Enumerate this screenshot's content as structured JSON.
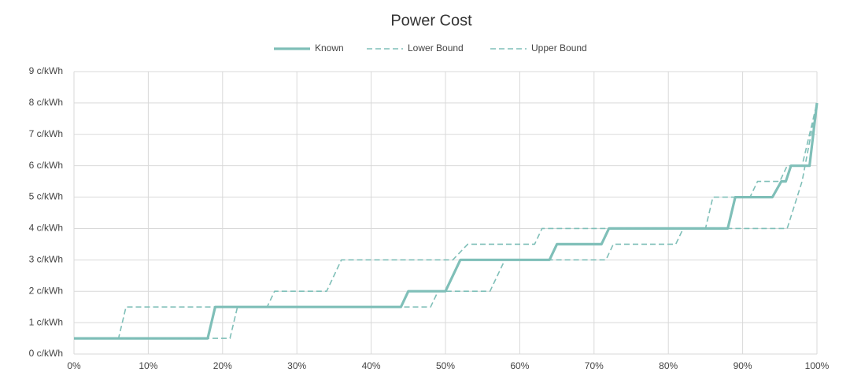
{
  "chart_data": {
    "type": "line",
    "title": "Power Cost",
    "xlim": [
      0,
      100
    ],
    "xticks": [
      {
        "value": 0,
        "label": "0%"
      },
      {
        "value": 10,
        "label": "10%"
      },
      {
        "value": 20,
        "label": "20%"
      },
      {
        "value": 30,
        "label": "30%"
      },
      {
        "value": 40,
        "label": "40%"
      },
      {
        "value": 50,
        "label": "50%"
      },
      {
        "value": 60,
        "label": "60%"
      },
      {
        "value": 70,
        "label": "70%"
      },
      {
        "value": 80,
        "label": "80%"
      },
      {
        "value": 90,
        "label": "90%"
      },
      {
        "value": 100,
        "label": "100%"
      }
    ],
    "ylim": [
      0,
      9
    ],
    "yticks": [
      {
        "value": 0,
        "label": "0 c/kWh"
      },
      {
        "value": 1,
        "label": "1 c/kWh"
      },
      {
        "value": 2,
        "label": "2 c/kWh"
      },
      {
        "value": 3,
        "label": "3 c/kWh"
      },
      {
        "value": 4,
        "label": "4 c/kWh"
      },
      {
        "value": 5,
        "label": "5 c/kWh"
      },
      {
        "value": 6,
        "label": "6 c/kWh"
      },
      {
        "value": 7,
        "label": "7 c/kWh"
      },
      {
        "value": 8,
        "label": "8 c/kWh"
      },
      {
        "value": 9,
        "label": "9 c/kWh"
      }
    ],
    "grid": true,
    "legend": "top",
    "series": [
      {
        "name": "Known",
        "color": "#7fbfb8",
        "dashed": false,
        "x": [
          0,
          18,
          19,
          44,
          45,
          50,
          52,
          64,
          65,
          71,
          72,
          88,
          89,
          94,
          95.2,
          95.8,
          96.5,
          99,
          100
        ],
        "values": [
          0.5,
          0.5,
          1.5,
          1.5,
          2,
          2,
          3,
          3,
          3.5,
          3.5,
          4,
          4,
          5,
          5,
          5.5,
          5.5,
          6,
          6,
          8
        ]
      },
      {
        "name": "Lower Bound",
        "color": "#7fbfb8",
        "dashed": true,
        "x": [
          0,
          21,
          22,
          48,
          49,
          56,
          58,
          71.6,
          72.6,
          81,
          82,
          96,
          98,
          100
        ],
        "values": [
          0.5,
          0.5,
          1.5,
          1.5,
          2,
          2,
          3,
          3,
          3.5,
          3.5,
          4,
          4,
          5.5,
          8
        ]
      },
      {
        "name": "Upper Bound",
        "color": "#7fbfb8",
        "dashed": true,
        "x": [
          0,
          6,
          7,
          26,
          27,
          34,
          36,
          51,
          53,
          62,
          63,
          85,
          86,
          91,
          92,
          95,
          96,
          98,
          100
        ],
        "values": [
          0.5,
          0.5,
          1.5,
          1.5,
          2,
          2,
          3,
          3,
          3.5,
          3.5,
          4,
          4,
          5,
          5,
          5.5,
          5.5,
          6,
          6,
          8
        ]
      }
    ]
  }
}
